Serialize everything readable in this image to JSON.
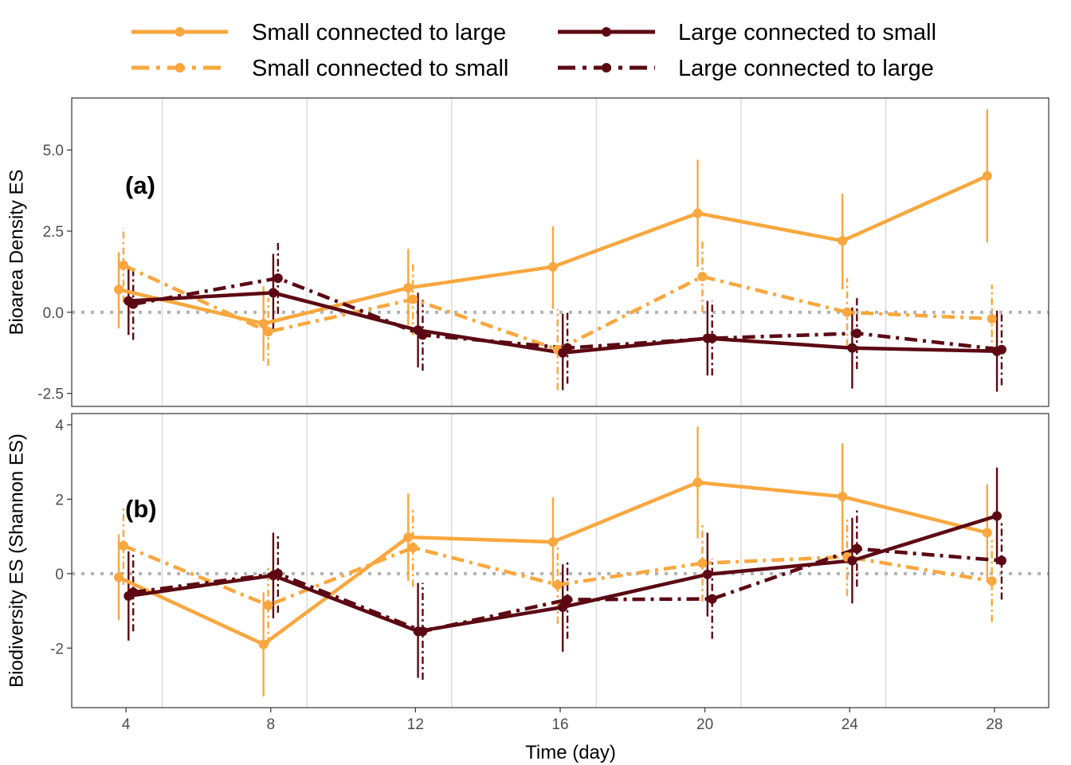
{
  "colors": {
    "small": "#F9A73E",
    "large": "#5C0913",
    "zero_line": "#b3b3b3",
    "grid": "#d9d9d9"
  },
  "legend": {
    "placement": "top",
    "items": [
      {
        "label": "Small connected to large",
        "series": "small_to_large"
      },
      {
        "label": "Large connected to small",
        "series": "large_to_small"
      },
      {
        "label": "Small connected to small",
        "series": "small_to_small"
      },
      {
        "label": "Large connected to large",
        "series": "large_to_large"
      }
    ]
  },
  "chart_data": {
    "type": "line",
    "xlabel": "Time (day)",
    "xlim": [
      2.5,
      29.5
    ],
    "x_ticks": [
      4,
      8,
      12,
      16,
      20,
      24,
      28
    ],
    "x_tick_labels": [
      "4",
      "8",
      "12",
      "16",
      "20",
      "24",
      "28"
    ],
    "vertical_grid_x": [
      5,
      9,
      13,
      17,
      21,
      25
    ],
    "zero_line": 0,
    "panels": [
      {
        "label": "(a)",
        "ylabel": "Bioarea Density ES",
        "ylim": [
          -2.9,
          6.6
        ],
        "y_ticks": [
          -2.5,
          0,
          2.5,
          5
        ],
        "y_tick_labels": [
          "-2.5",
          "0.0",
          "2.5",
          "5.0"
        ],
        "series": [
          {
            "id": "small_to_large",
            "name": "Small connected to large",
            "color": "small",
            "dash": "solid",
            "x": [
              3.8,
              7.8,
              11.8,
              15.8,
              19.8,
              23.8,
              27.8
            ],
            "y": [
              0.7,
              -0.35,
              0.75,
              1.4,
              3.05,
              2.2,
              4.2
            ],
            "lower": [
              -0.5,
              -1.5,
              -0.4,
              0.1,
              1.4,
              0.7,
              2.15
            ],
            "upper": [
              1.85,
              0.8,
              1.95,
              2.65,
              4.7,
              3.65,
              6.25
            ]
          },
          {
            "id": "small_to_small",
            "name": "Small connected to small",
            "color": "small",
            "dash": "dashdot",
            "x": [
              3.93,
              7.93,
              11.93,
              15.93,
              19.93,
              23.93,
              27.93
            ],
            "y": [
              1.45,
              -0.6,
              0.4,
              -1.15,
              1.1,
              0.0,
              -0.2
            ],
            "lower": [
              0.3,
              -1.65,
              -0.7,
              -2.4,
              0.0,
              -1.05,
              -1.25
            ],
            "upper": [
              2.6,
              0.45,
              1.5,
              0.1,
              2.25,
              1.05,
              0.85
            ]
          },
          {
            "id": "large_to_small",
            "name": "Large connected to small",
            "color": "large",
            "dash": "solid",
            "x": [
              4.07,
              8.07,
              12.07,
              16.07,
              20.07,
              24.07,
              28.07
            ],
            "y": [
              0.35,
              0.6,
              -0.55,
              -1.25,
              -0.8,
              -1.1,
              -1.2
            ],
            "lower": [
              -0.7,
              -0.6,
              -1.7,
              -2.4,
              -1.95,
              -2.35,
              -2.45
            ],
            "upper": [
              1.4,
              1.8,
              0.6,
              -0.05,
              0.35,
              0.15,
              0.05
            ]
          },
          {
            "id": "large_to_large",
            "name": "Large connected to large",
            "color": "large",
            "dash": "dashdot",
            "x": [
              4.2,
              8.2,
              12.2,
              16.2,
              20.2,
              24.2,
              28.2
            ],
            "y": [
              0.25,
              1.05,
              -0.7,
              -1.1,
              -0.8,
              -0.65,
              -1.15
            ],
            "lower": [
              -0.85,
              -0.05,
              -1.8,
              -2.2,
              -1.95,
              -1.75,
              -2.25
            ],
            "upper": [
              1.35,
              2.15,
              0.4,
              0.0,
              0.35,
              0.45,
              -0.05
            ]
          }
        ]
      },
      {
        "label": "(b)",
        "ylabel": "Biodiversity ES (Shannon ES)",
        "ylim": [
          -3.6,
          4.3
        ],
        "y_ticks": [
          -2,
          0,
          2,
          4
        ],
        "y_tick_labels": [
          "-2",
          "0",
          "2",
          "4"
        ],
        "series": [
          {
            "id": "small_to_large",
            "name": "Small connected to large",
            "color": "small",
            "dash": "solid",
            "x": [
              3.8,
              7.8,
              11.8,
              15.8,
              19.8,
              23.8,
              27.8
            ],
            "y": [
              -0.1,
              -1.9,
              0.98,
              0.85,
              2.45,
              2.07,
              1.1
            ],
            "lower": [
              -1.25,
              -3.3,
              -0.2,
              -0.35,
              0.95,
              0.6,
              -0.15
            ],
            "upper": [
              1.05,
              -0.5,
              2.15,
              2.05,
              3.95,
              3.5,
              2.4
            ]
          },
          {
            "id": "small_to_small",
            "name": "Small connected to small",
            "color": "small",
            "dash": "dashdot",
            "x": [
              3.93,
              7.93,
              11.93,
              15.93,
              19.93,
              23.93,
              27.93
            ],
            "y": [
              0.75,
              -0.85,
              0.7,
              -0.3,
              0.28,
              0.45,
              -0.2
            ],
            "lower": [
              -0.3,
              -1.9,
              -0.35,
              -1.35,
              -0.75,
              -0.6,
              -1.3
            ],
            "upper": [
              1.8,
              0.2,
              1.75,
              0.75,
              1.3,
              1.5,
              0.9
            ]
          },
          {
            "id": "large_to_small",
            "name": "Large connected to small",
            "color": "large",
            "dash": "solid",
            "x": [
              4.07,
              8.07,
              12.07,
              16.07,
              20.07,
              24.07,
              28.07
            ],
            "y": [
              -0.6,
              -0.05,
              -1.55,
              -0.9,
              -0.02,
              0.35,
              1.55
            ],
            "lower": [
              -1.8,
              -1.2,
              -2.8,
              -2.1,
              -1.15,
              -0.8,
              0.25
            ],
            "upper": [
              0.6,
              1.1,
              -0.25,
              0.25,
              1.1,
              1.5,
              2.85
            ]
          },
          {
            "id": "large_to_large",
            "name": "Large connected to large",
            "color": "large",
            "dash": "dashdot",
            "x": [
              4.2,
              8.2,
              12.2,
              16.2,
              20.2,
              24.2,
              28.2
            ],
            "y": [
              -0.5,
              0.0,
              -1.55,
              -0.7,
              -0.68,
              0.67,
              0.35
            ],
            "lower": [
              -1.55,
              -1.05,
              -2.85,
              -1.75,
              -1.75,
              -0.35,
              -0.7
            ],
            "upper": [
              0.55,
              1.05,
              -0.25,
              0.35,
              0.4,
              1.7,
              1.4
            ]
          }
        ]
      }
    ]
  }
}
